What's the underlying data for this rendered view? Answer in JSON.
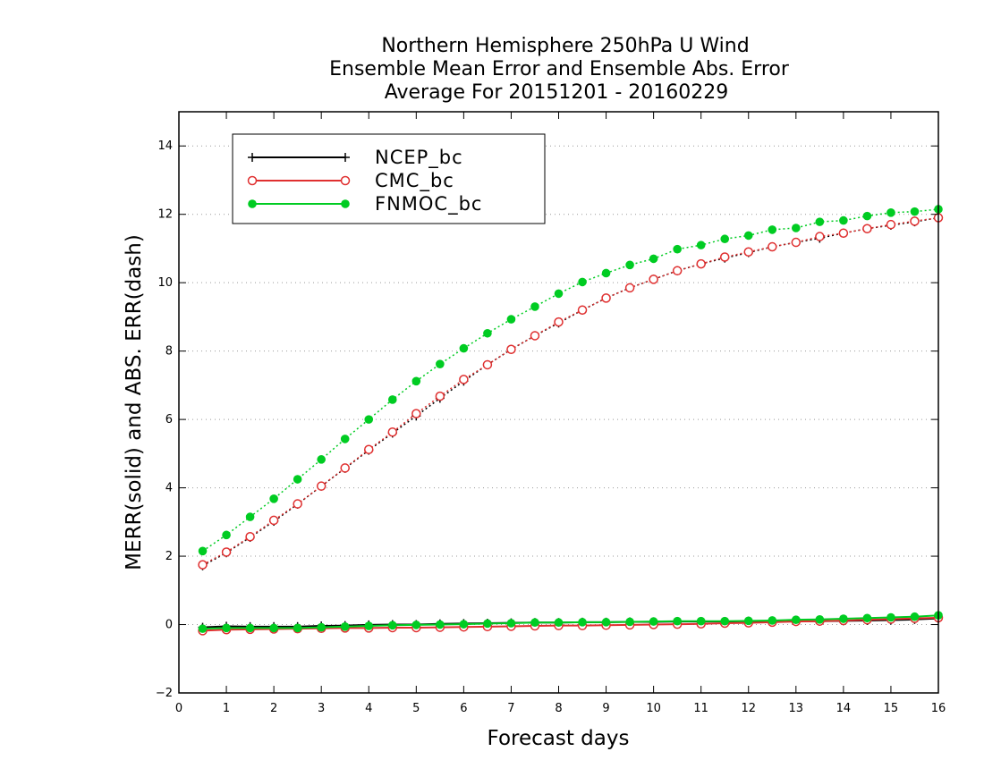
{
  "chart_data": {
    "type": "line",
    "title": [
      "Northern Hemisphere 250hPa U Wind",
      "Ensemble Mean Error and Ensemble Abs. Error",
      "Average For 20151201 - 20160229"
    ],
    "xlabel": "Forecast days",
    "ylabel": "MERR(solid) and ABS. ERR(dash)",
    "xlim": [
      0,
      16
    ],
    "ylim": [
      -2,
      15
    ],
    "xticks": [
      0,
      1,
      2,
      3,
      4,
      5,
      6,
      7,
      8,
      9,
      10,
      11,
      12,
      13,
      14,
      15,
      16
    ],
    "yticks": [
      -2,
      0,
      2,
      4,
      6,
      8,
      10,
      12,
      14
    ],
    "grid": "horizontal dotted",
    "legend_position": "top-left",
    "x": [
      0.5,
      1,
      1.5,
      2,
      2.5,
      3,
      3.5,
      4,
      4.5,
      5,
      5.5,
      6,
      6.5,
      7,
      7.5,
      8,
      8.5,
      9,
      9.5,
      10,
      10.5,
      11,
      11.5,
      12,
      12.5,
      13,
      13.5,
      14,
      14.5,
      15,
      15.5,
      16
    ],
    "series": [
      {
        "name": "NCEP_bc",
        "color": "#000000",
        "marker": "plus",
        "merr": [
          -0.08,
          -0.05,
          -0.06,
          -0.06,
          -0.06,
          -0.04,
          -0.03,
          -0.01,
          0.0,
          0.0,
          0.02,
          0.03,
          0.04,
          0.05,
          0.06,
          0.06,
          0.07,
          0.07,
          0.08,
          0.08,
          0.09,
          0.09,
          0.09,
          0.1,
          0.1,
          0.1,
          0.1,
          0.11,
          0.12,
          0.13,
          0.15,
          0.18
        ],
        "abs_err": [
          1.72,
          2.1,
          2.55,
          3.02,
          3.52,
          4.05,
          4.57,
          5.1,
          5.6,
          6.1,
          6.62,
          7.12,
          7.6,
          8.05,
          8.45,
          8.82,
          9.2,
          9.55,
          9.85,
          10.1,
          10.35,
          10.55,
          10.72,
          10.88,
          11.05,
          11.18,
          11.3,
          11.45,
          11.58,
          11.68,
          11.78,
          11.9
        ]
      },
      {
        "name": "CMC_bc",
        "color": "#e03030",
        "marker": "open-circle",
        "merr": [
          -0.18,
          -0.15,
          -0.14,
          -0.13,
          -0.12,
          -0.11,
          -0.1,
          -0.1,
          -0.09,
          -0.09,
          -0.08,
          -0.07,
          -0.06,
          -0.05,
          -0.04,
          -0.03,
          -0.03,
          -0.02,
          -0.01,
          0.0,
          0.01,
          0.02,
          0.04,
          0.05,
          0.07,
          0.09,
          0.1,
          0.12,
          0.14,
          0.16,
          0.18,
          0.2
        ],
        "abs_err": [
          1.75,
          2.12,
          2.57,
          3.05,
          3.53,
          4.05,
          4.58,
          5.12,
          5.63,
          6.17,
          6.68,
          7.17,
          7.6,
          8.05,
          8.45,
          8.85,
          9.2,
          9.55,
          9.85,
          10.1,
          10.35,
          10.55,
          10.75,
          10.9,
          11.05,
          11.18,
          11.35,
          11.45,
          11.58,
          11.7,
          11.8,
          11.9
        ]
      },
      {
        "name": "FNMOC_bc",
        "color": "#00cc22",
        "marker": "filled-circle",
        "merr": [
          -0.12,
          -0.1,
          -0.1,
          -0.1,
          -0.1,
          -0.08,
          -0.06,
          -0.04,
          -0.02,
          -0.01,
          0.0,
          0.01,
          0.03,
          0.04,
          0.06,
          0.06,
          0.07,
          0.07,
          0.08,
          0.09,
          0.1,
          0.1,
          0.1,
          0.11,
          0.12,
          0.14,
          0.15,
          0.17,
          0.19,
          0.21,
          0.23,
          0.27
        ],
        "abs_err": [
          2.15,
          2.62,
          3.15,
          3.68,
          4.25,
          4.83,
          5.43,
          6.0,
          6.58,
          7.12,
          7.62,
          8.08,
          8.52,
          8.93,
          9.3,
          9.68,
          10.02,
          10.28,
          10.52,
          10.7,
          10.98,
          11.1,
          11.28,
          11.38,
          11.55,
          11.6,
          11.78,
          11.82,
          11.95,
          12.05,
          12.08,
          12.15
        ]
      }
    ]
  }
}
